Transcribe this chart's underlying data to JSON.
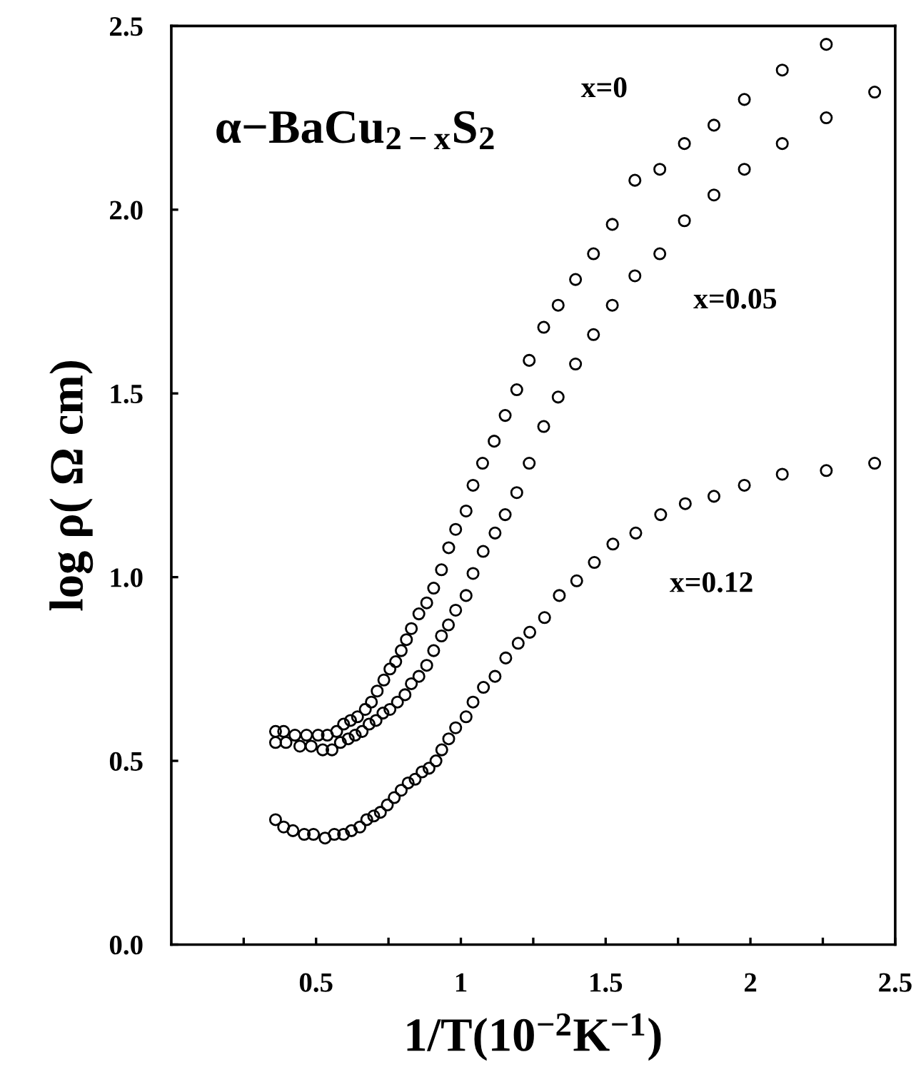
{
  "chart_data": {
    "type": "scatter",
    "title": "α−BaCu$_{2−x}$S$_{2}$",
    "xlabel": "1/T(10$^{−2}$K$^{−1}$)",
    "ylabel": "log ρ( Ω cm)",
    "xlim": [
      0,
      2.5
    ],
    "ylim": [
      0,
      2.5
    ],
    "xticks": [
      {
        "value": 0.25,
        "label": null
      },
      0.5,
      {
        "value": 0.75,
        "label": null
      },
      1,
      {
        "value": 1.25,
        "label": null
      },
      1.5,
      {
        "value": 1.75,
        "label": null
      },
      2,
      {
        "value": 2.25,
        "label": null
      },
      2.5
    ],
    "yticks": [
      {
        "value": 0,
        "label": "0.0"
      },
      {
        "value": 0.5,
        "label": "0.5"
      },
      {
        "value": 1,
        "label": "1.0"
      },
      {
        "value": 1.5,
        "label": "1.5"
      },
      {
        "value": 2,
        "label": "2.0"
      },
      {
        "value": 2.5,
        "label": "2.5"
      }
    ],
    "grid": false,
    "legend": false,
    "marker": "circle",
    "series": [
      {
        "name": "x=0",
        "color": "#000000",
        "x": [
          2.262,
          2.11,
          1.979,
          1.874,
          1.772,
          1.687,
          1.601,
          1.523,
          1.458,
          1.396,
          1.336,
          1.286,
          1.236,
          1.193,
          1.153,
          1.115,
          1.075,
          1.042,
          1.018,
          0.982,
          0.958,
          0.933,
          0.906,
          0.882,
          0.855,
          0.829,
          0.812,
          0.794,
          0.775,
          0.755,
          0.734,
          0.711,
          0.691,
          0.67,
          0.643,
          0.619,
          0.595,
          0.571,
          0.539,
          0.507,
          0.467,
          0.427,
          0.388,
          0.36
        ],
        "values": [
          2.45,
          2.38,
          2.3,
          2.23,
          2.18,
          2.11,
          2.08,
          1.96,
          1.88,
          1.81,
          1.74,
          1.68,
          1.59,
          1.51,
          1.44,
          1.37,
          1.31,
          1.25,
          1.18,
          1.13,
          1.08,
          1.02,
          0.97,
          0.93,
          0.9,
          0.86,
          0.83,
          0.8,
          0.77,
          0.75,
          0.72,
          0.69,
          0.66,
          0.64,
          0.62,
          0.61,
          0.6,
          0.58,
          0.57,
          0.57,
          0.57,
          0.57,
          0.58,
          0.58
        ]
      },
      {
        "name": "x=0.05",
        "color": "#000000",
        "x": [
          2.429,
          2.262,
          2.11,
          1.979,
          1.874,
          1.772,
          1.687,
          1.601,
          1.523,
          1.458,
          1.396,
          1.336,
          1.286,
          1.236,
          1.193,
          1.153,
          1.118,
          1.077,
          1.042,
          1.018,
          0.982,
          0.957,
          0.933,
          0.906,
          0.882,
          0.855,
          0.829,
          0.807,
          0.781,
          0.755,
          0.731,
          0.707,
          0.683,
          0.659,
          0.635,
          0.611,
          0.584,
          0.555,
          0.523,
          0.483,
          0.444,
          0.396,
          0.36
        ],
        "values": [
          2.32,
          2.25,
          2.18,
          2.11,
          2.04,
          1.97,
          1.88,
          1.82,
          1.74,
          1.66,
          1.58,
          1.49,
          1.41,
          1.31,
          1.23,
          1.17,
          1.12,
          1.07,
          1.01,
          0.95,
          0.91,
          0.87,
          0.84,
          0.8,
          0.76,
          0.73,
          0.71,
          0.68,
          0.66,
          0.64,
          0.63,
          0.61,
          0.6,
          0.58,
          0.57,
          0.56,
          0.55,
          0.53,
          0.53,
          0.54,
          0.54,
          0.55,
          0.55
        ]
      },
      {
        "name": "x=0.12",
        "color": "#000000",
        "x": [
          2.429,
          2.262,
          2.11,
          1.979,
          1.874,
          1.775,
          1.69,
          1.604,
          1.525,
          1.461,
          1.4,
          1.34,
          1.289,
          1.238,
          1.198,
          1.155,
          1.118,
          1.078,
          1.042,
          1.018,
          0.982,
          0.958,
          0.934,
          0.914,
          0.89,
          0.866,
          0.842,
          0.818,
          0.794,
          0.77,
          0.746,
          0.722,
          0.699,
          0.675,
          0.651,
          0.622,
          0.595,
          0.563,
          0.531,
          0.491,
          0.459,
          0.42,
          0.388,
          0.36
        ],
        "values": [
          1.31,
          1.29,
          1.28,
          1.25,
          1.22,
          1.2,
          1.17,
          1.12,
          1.09,
          1.04,
          0.99,
          0.95,
          0.89,
          0.85,
          0.82,
          0.78,
          0.73,
          0.7,
          0.66,
          0.62,
          0.59,
          0.56,
          0.53,
          0.5,
          0.48,
          0.47,
          0.45,
          0.44,
          0.42,
          0.4,
          0.38,
          0.36,
          0.35,
          0.34,
          0.32,
          0.31,
          0.3,
          0.3,
          0.29,
          0.3,
          0.3,
          0.31,
          0.32,
          0.34
        ]
      }
    ]
  }
}
